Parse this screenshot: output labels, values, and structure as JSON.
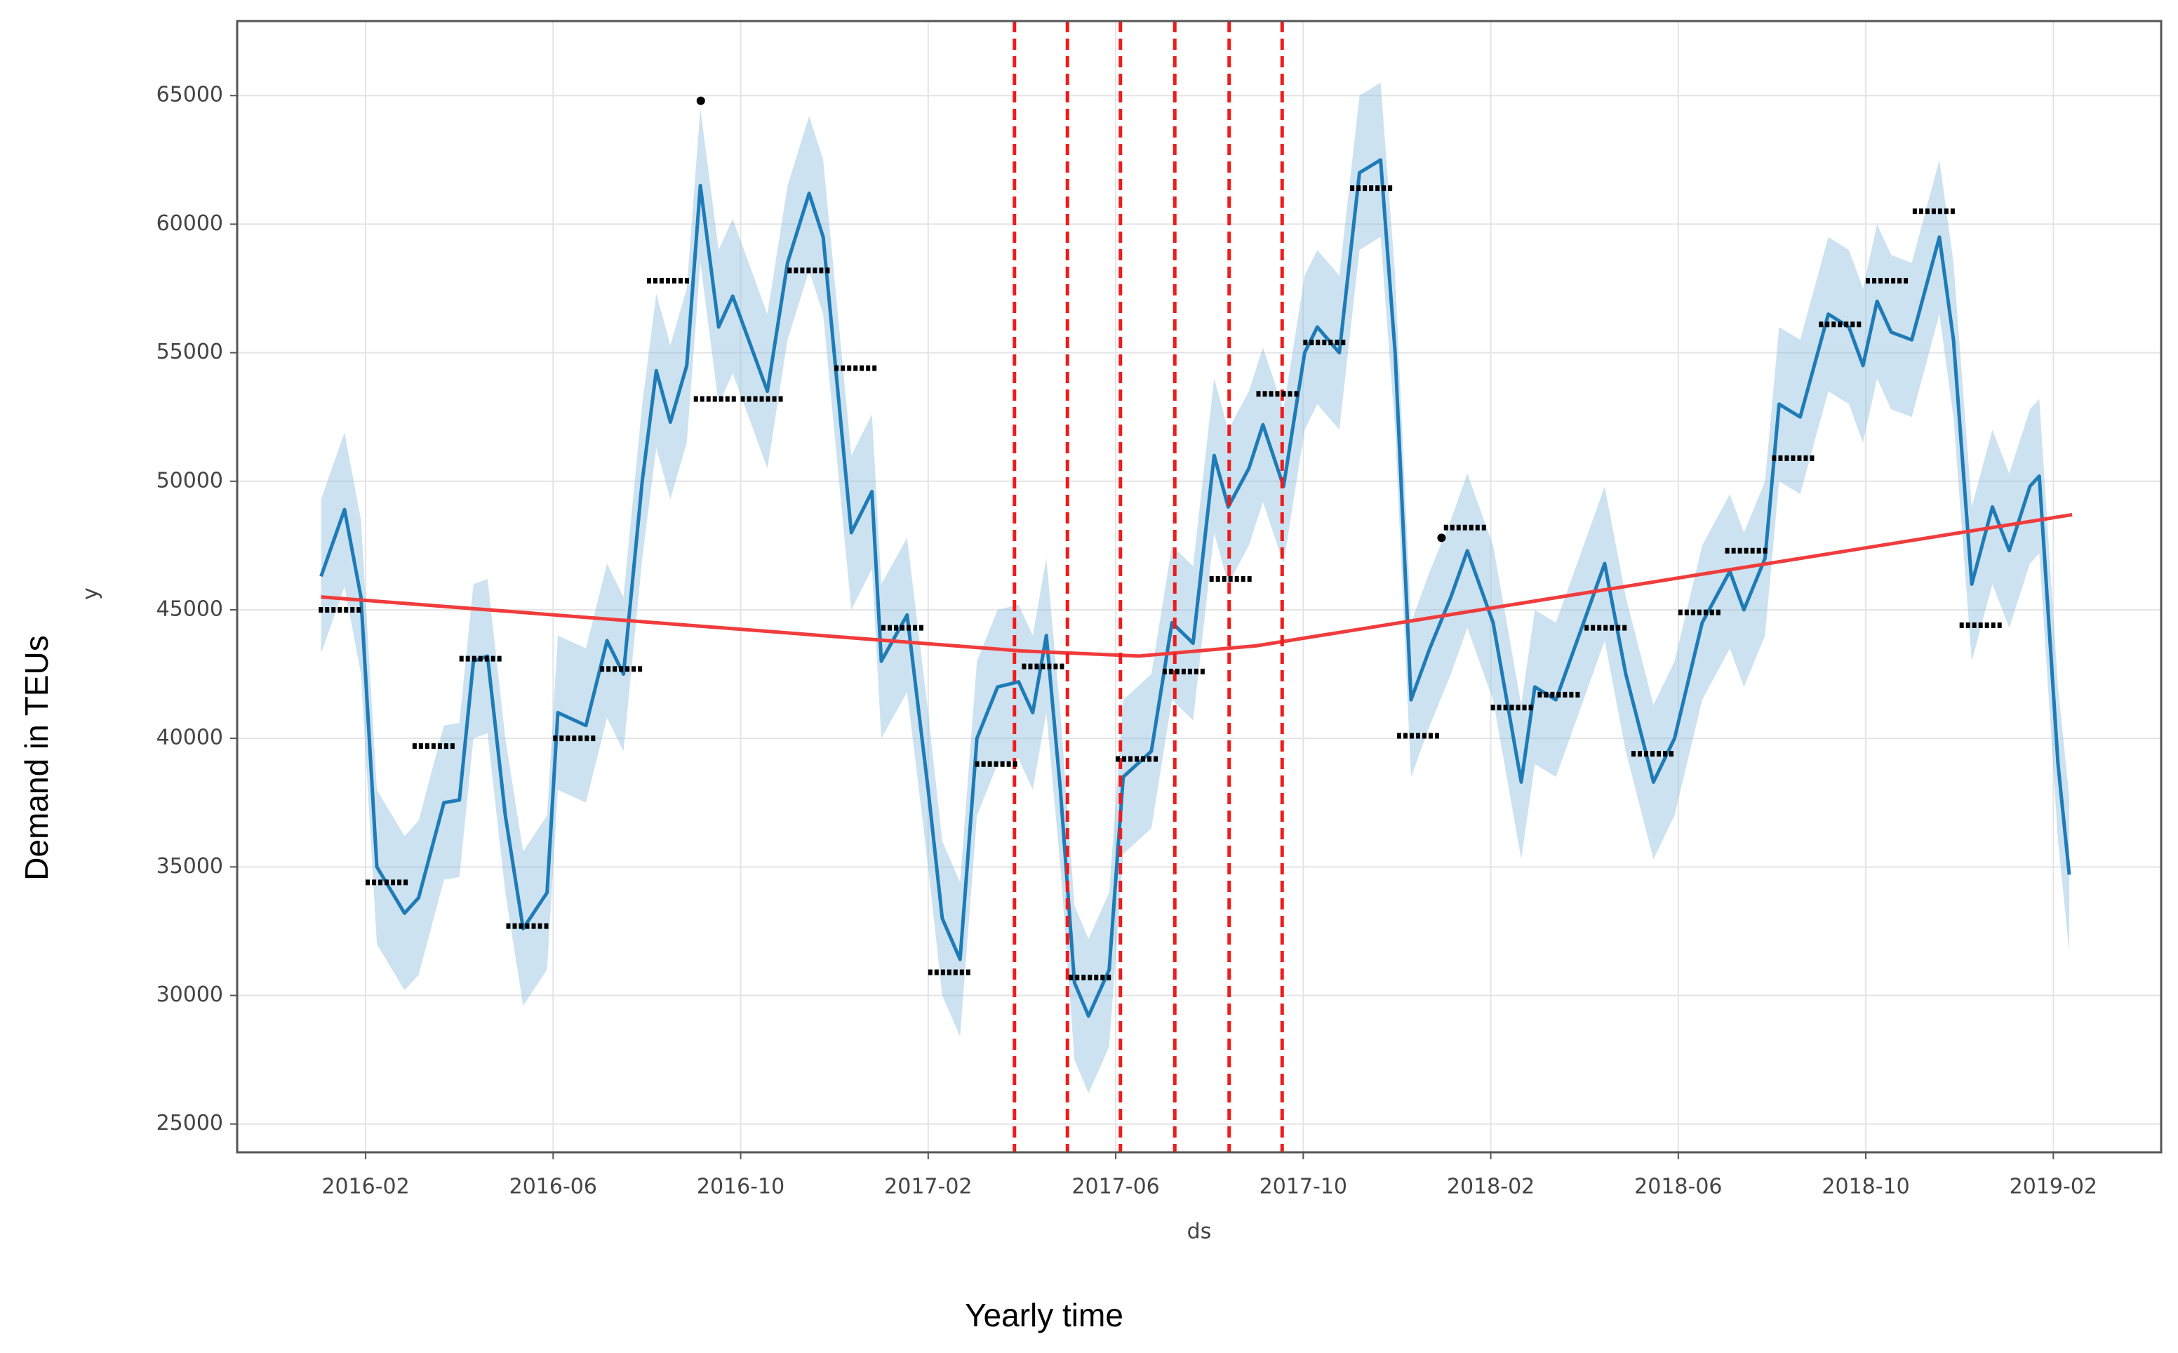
{
  "chart_data": {
    "type": "line",
    "xlabel": "ds",
    "ylabel": "y",
    "outer_xlabel": "Yearly time",
    "outer_ylabel": "Demand  in TEUs",
    "grid": true,
    "xlim": [
      -1.74,
      39.3
    ],
    "ylim": [
      23900,
      67900
    ],
    "xticks": [
      {
        "value": 1,
        "label": "2016-02"
      },
      {
        "value": 5,
        "label": "2016-06"
      },
      {
        "value": 9,
        "label": "2016-10"
      },
      {
        "value": 13,
        "label": "2017-02"
      },
      {
        "value": 17,
        "label": "2017-06"
      },
      {
        "value": 21,
        "label": "2017-10"
      },
      {
        "value": 25,
        "label": "2018-02"
      },
      {
        "value": 29,
        "label": "2018-06"
      },
      {
        "value": 33,
        "label": "2018-10"
      },
      {
        "value": 37,
        "label": "2019-02"
      }
    ],
    "yticks": [
      25000,
      30000,
      35000,
      40000,
      45000,
      50000,
      55000,
      60000,
      65000
    ],
    "x": [
      0.05,
      0.55,
      0.9,
      1.24,
      1.83,
      2.13,
      2.67,
      3.0,
      3.3,
      3.6,
      3.98,
      4.36,
      4.87,
      5.1,
      5.7,
      6.15,
      6.5,
      6.9,
      7.2,
      7.5,
      7.85,
      8.14,
      8.53,
      8.83,
      9.27,
      9.57,
      10.0,
      10.46,
      10.76,
      11.36,
      11.8,
      12.0,
      12.55,
      13.0,
      13.3,
      13.68,
      14.04,
      14.48,
      14.93,
      15.23,
      15.52,
      15.82,
      16.12,
      16.42,
      16.86,
      17.16,
      17.76,
      18.2,
      18.65,
      19.1,
      19.4,
      19.84,
      20.14,
      20.58,
      21.03,
      21.3,
      21.77,
      22.2,
      22.65,
      22.96,
      23.3,
      23.7,
      24.15,
      24.5,
      25.05,
      25.65,
      25.94,
      26.39,
      26.98,
      27.43,
      27.88,
      28.47,
      28.92,
      29.51,
      30.1,
      30.4,
      30.85,
      31.15,
      31.6,
      32.2,
      32.64,
      32.94,
      33.24,
      33.54,
      33.98,
      34.57,
      34.87,
      35.26,
      35.7,
      36.06,
      36.5,
      36.7,
      37.1,
      37.34
    ],
    "forecast": {
      "color": "#1f7bb6",
      "band_color": "#8fbfe0",
      "values": [
        46300,
        48900,
        45500,
        35000,
        33200,
        33800,
        37500,
        37600,
        43000,
        43200,
        37000,
        32600,
        34000,
        41000,
        40500,
        43800,
        42500,
        50000,
        54300,
        52300,
        54500,
        61500,
        56000,
        57200,
        55000,
        53500,
        58500,
        61200,
        59500,
        48000,
        49600,
        43000,
        44800,
        38000,
        33000,
        31400,
        40000,
        42000,
        42200,
        41000,
        44000,
        38000,
        30500,
        29200,
        31000,
        38500,
        39500,
        44500,
        43700,
        51000,
        49000,
        50500,
        52200,
        49800,
        55000,
        56000,
        55000,
        62000,
        62500,
        55000,
        41500,
        43500,
        45500,
        47300,
        44500,
        38300,
        42000,
        41500,
        44500,
        46800,
        42500,
        38300,
        40000,
        44500,
        46500,
        45000,
        47000,
        53000,
        52500,
        56500,
        56000,
        54500,
        57000,
        55800,
        55500,
        59500,
        55500,
        46000,
        49000,
        47300,
        49800,
        50200,
        39000,
        34700
      ],
      "upper": [
        49300,
        51900,
        48500,
        38000,
        36200,
        36800,
        40500,
        40600,
        46000,
        46200,
        40000,
        35600,
        37000,
        44000,
        43500,
        46800,
        45500,
        53000,
        57300,
        55300,
        57500,
        64500,
        59000,
        60200,
        58000,
        56500,
        61500,
        64200,
        62500,
        51000,
        52600,
        46000,
        47800,
        41000,
        36000,
        34400,
        43000,
        45000,
        45200,
        44000,
        47000,
        41000,
        33500,
        32200,
        34000,
        41500,
        42500,
        47500,
        46700,
        54000,
        52000,
        53500,
        55200,
        52800,
        58000,
        59000,
        58000,
        65000,
        65500,
        58000,
        44500,
        46500,
        48500,
        50300,
        47500,
        41300,
        45000,
        44500,
        47500,
        49800,
        45500,
        41300,
        43000,
        47500,
        49500,
        48000,
        50000,
        56000,
        55500,
        59500,
        59000,
        57500,
        60000,
        58800,
        58500,
        62500,
        58500,
        49000,
        52000,
        50300,
        52800,
        53200,
        42000,
        37700
      ],
      "lower": [
        43300,
        45900,
        42500,
        32000,
        30200,
        30800,
        34500,
        34600,
        40000,
        40200,
        34000,
        29600,
        31000,
        38000,
        37500,
        40800,
        39500,
        47000,
        51300,
        49300,
        51500,
        58500,
        53000,
        54200,
        52000,
        50500,
        55500,
        58200,
        56500,
        45000,
        46600,
        40000,
        41800,
        35000,
        30000,
        28400,
        37000,
        39000,
        39200,
        38000,
        41000,
        35000,
        27500,
        26200,
        28000,
        35500,
        36500,
        41500,
        40700,
        48000,
        46000,
        47500,
        49200,
        46800,
        52000,
        53000,
        52000,
        59000,
        59500,
        52000,
        38500,
        40500,
        42500,
        44300,
        41500,
        35300,
        39000,
        38500,
        41500,
        43800,
        39500,
        35300,
        37000,
        41500,
        43500,
        42000,
        44000,
        50000,
        49500,
        53500,
        53000,
        51500,
        54000,
        52800,
        52500,
        56500,
        52500,
        43000,
        46000,
        44300,
        46800,
        47200,
        36000,
        31700
      ]
    },
    "actual": {
      "color": "#000000",
      "x": [
        0,
        1,
        2,
        3,
        4,
        5,
        6,
        7,
        8,
        9,
        10,
        11,
        12,
        13,
        14,
        15,
        16,
        17,
        18,
        19,
        20,
        21,
        22,
        23,
        24,
        25,
        26,
        27,
        28,
        29,
        30,
        31,
        32,
        33,
        34,
        35
      ],
      "values": [
        45000,
        34400,
        39700,
        43100,
        32700,
        40000,
        42700,
        57800,
        53200,
        53200,
        58200,
        54400,
        44300,
        30900,
        39000,
        42800,
        30700,
        39200,
        42600,
        46200,
        53400,
        55400,
        61400,
        40100,
        48200,
        41200,
        41700,
        44300,
        39400,
        44900,
        47300,
        50900,
        56100,
        57800,
        60500,
        44400
      ]
    },
    "outliers": {
      "x": [
        8.15,
        23.95
      ],
      "values": [
        64800,
        47800
      ]
    },
    "trend": {
      "color": "#f03c3c",
      "x": [
        0.05,
        15,
        17.5,
        20,
        37.4
      ],
      "values": [
        45500,
        43400,
        43200,
        43600,
        48700
      ]
    },
    "changepoints": {
      "color": "#ee1c1c",
      "x": [
        14.84,
        15.97,
        17.1,
        18.26,
        19.42,
        20.55
      ]
    }
  }
}
